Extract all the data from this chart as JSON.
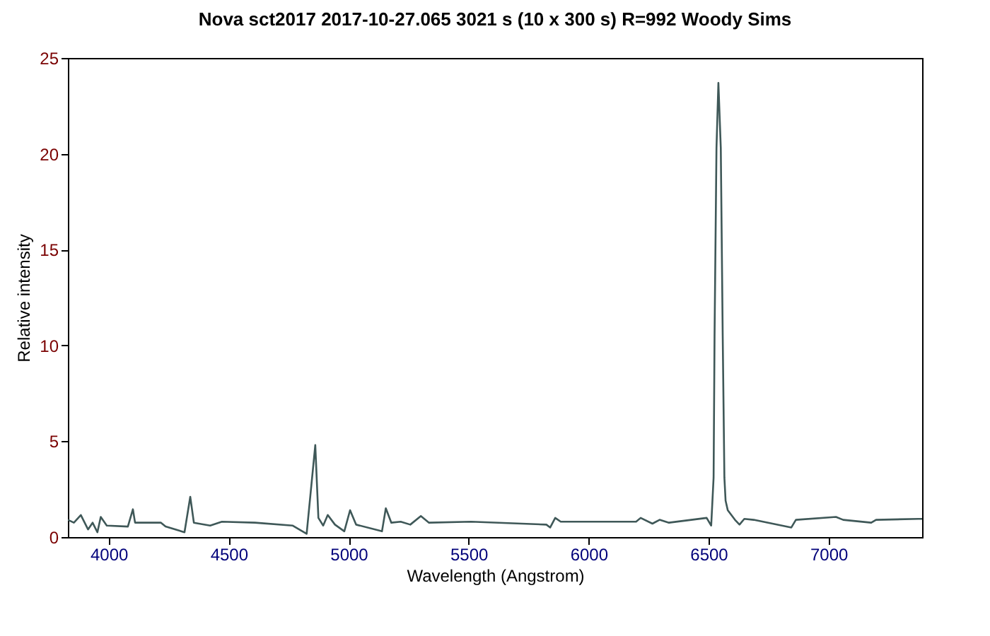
{
  "chart_data": {
    "type": "line",
    "title": "Nova sct2017  2017-10-27.065  3021 s (10 x 300 s) R=992  Woody Sims",
    "xlabel": "Wavelength (Angstrom)",
    "ylabel": "Relative intensity",
    "xlim": [
      3830,
      7390
    ],
    "ylim": [
      0,
      25
    ],
    "xticks": [
      4000,
      4500,
      5000,
      5500,
      6000,
      6500,
      7000
    ],
    "yticks": [
      0,
      5,
      10,
      15,
      20,
      25
    ],
    "grid": false,
    "marker": "none",
    "line_style": "solid",
    "series": [
      {
        "color": "#3f5858",
        "x": [
          3830,
          3855,
          3884,
          3914,
          3933,
          3953,
          3967,
          3992,
          4080,
          4101,
          4110,
          4218,
          4237,
          4316,
          4340,
          4355,
          4423,
          4472,
          4610,
          4766,
          4825,
          4861,
          4874,
          4894,
          4913,
          4943,
          4982,
          5006,
          5031,
          5139,
          5155,
          5178,
          5217,
          5257,
          5301,
          5335,
          5511,
          5824,
          5840,
          5861,
          5884,
          6198,
          6217,
          6266,
          6296,
          6335,
          6492,
          6511,
          6521,
          6525,
          6533,
          6541,
          6551,
          6559,
          6566,
          6571,
          6580,
          6610,
          6629,
          6649,
          6688,
          6845,
          6864,
          7031,
          7061,
          7178,
          7198,
          7375,
          7390
        ],
        "values": [
          0.9,
          0.75,
          1.15,
          0.4,
          0.75,
          0.25,
          1.05,
          0.6,
          0.55,
          1.45,
          0.75,
          0.75,
          0.55,
          0.25,
          2.1,
          0.75,
          0.6,
          0.8,
          0.75,
          0.6,
          0.17,
          4.8,
          1.0,
          0.6,
          1.15,
          0.65,
          0.3,
          1.4,
          0.65,
          0.3,
          1.5,
          0.75,
          0.8,
          0.65,
          1.1,
          0.75,
          0.8,
          0.65,
          0.5,
          1.0,
          0.8,
          0.8,
          1.0,
          0.7,
          0.9,
          0.75,
          1.0,
          0.6,
          3.1,
          10.5,
          20.3,
          23.7,
          20.3,
          10.5,
          3.1,
          1.9,
          1.4,
          0.9,
          0.65,
          0.95,
          0.9,
          0.5,
          0.9,
          1.05,
          0.9,
          0.75,
          0.9,
          0.95,
          0.95
        ]
      }
    ]
  }
}
